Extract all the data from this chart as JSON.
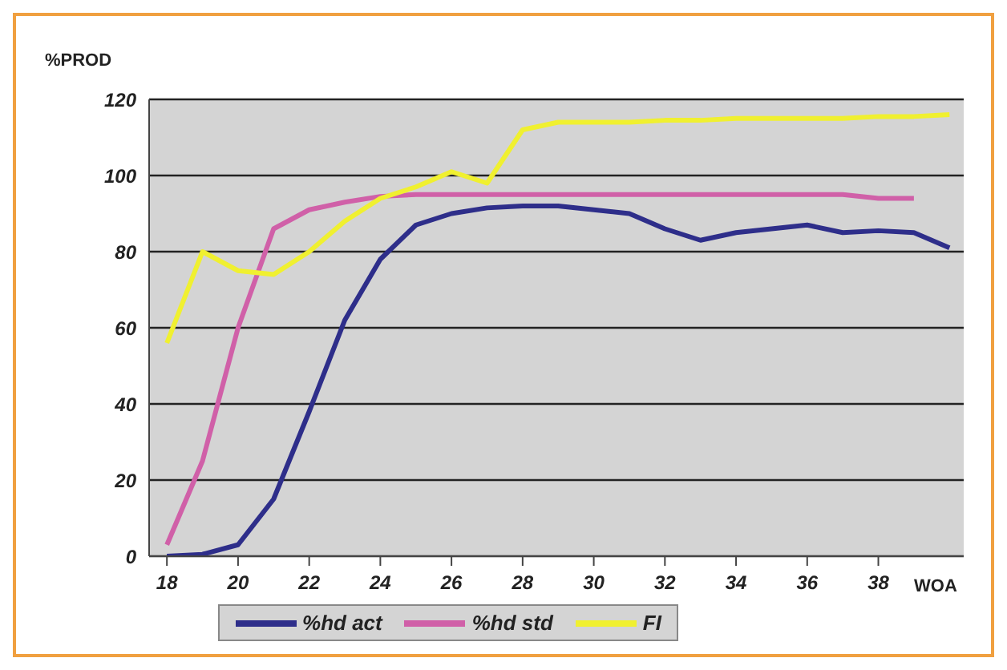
{
  "chart_data": {
    "type": "line",
    "xlabel": "WOA",
    "ylabel": "%PROD",
    "x": [
      18,
      19,
      20,
      21,
      22,
      23,
      24,
      25,
      26,
      27,
      28,
      29,
      30,
      31,
      32,
      33,
      34,
      35,
      36,
      37,
      38,
      39,
      40
    ],
    "series": [
      {
        "name": "%hd act",
        "color": "#2e2e8a",
        "values": [
          0,
          0.5,
          3,
          15,
          38,
          62,
          78,
          87,
          90,
          91.5,
          92,
          92,
          91,
          90,
          86,
          83,
          85,
          86,
          87,
          85,
          85.5,
          85,
          81
        ]
      },
      {
        "name": "%hd std",
        "color": "#d060a8",
        "values": [
          3,
          25,
          60,
          86,
          91,
          93,
          94.5,
          95,
          95,
          95,
          95,
          95,
          95,
          95,
          95,
          95,
          95,
          95,
          95,
          95,
          94,
          94,
          null
        ]
      },
      {
        "name": "FI",
        "color": "#f0f030",
        "values": [
          56,
          80,
          75,
          74,
          80,
          88,
          94,
          97,
          101,
          98,
          112,
          114,
          114,
          114,
          114.5,
          114.5,
          115,
          115,
          115,
          115,
          115.5,
          115.5,
          116
        ]
      }
    ],
    "xlim": [
      17.5,
      40.4
    ],
    "xticks": [
      18,
      20,
      22,
      24,
      26,
      28,
      30,
      32,
      34,
      36,
      38
    ],
    "ylim": [
      0,
      120
    ],
    "yticks": [
      0,
      20,
      40,
      60,
      80,
      100,
      120
    ],
    "grid": "y",
    "legend": "bottom",
    "marker": "none",
    "line_style": "solid"
  }
}
